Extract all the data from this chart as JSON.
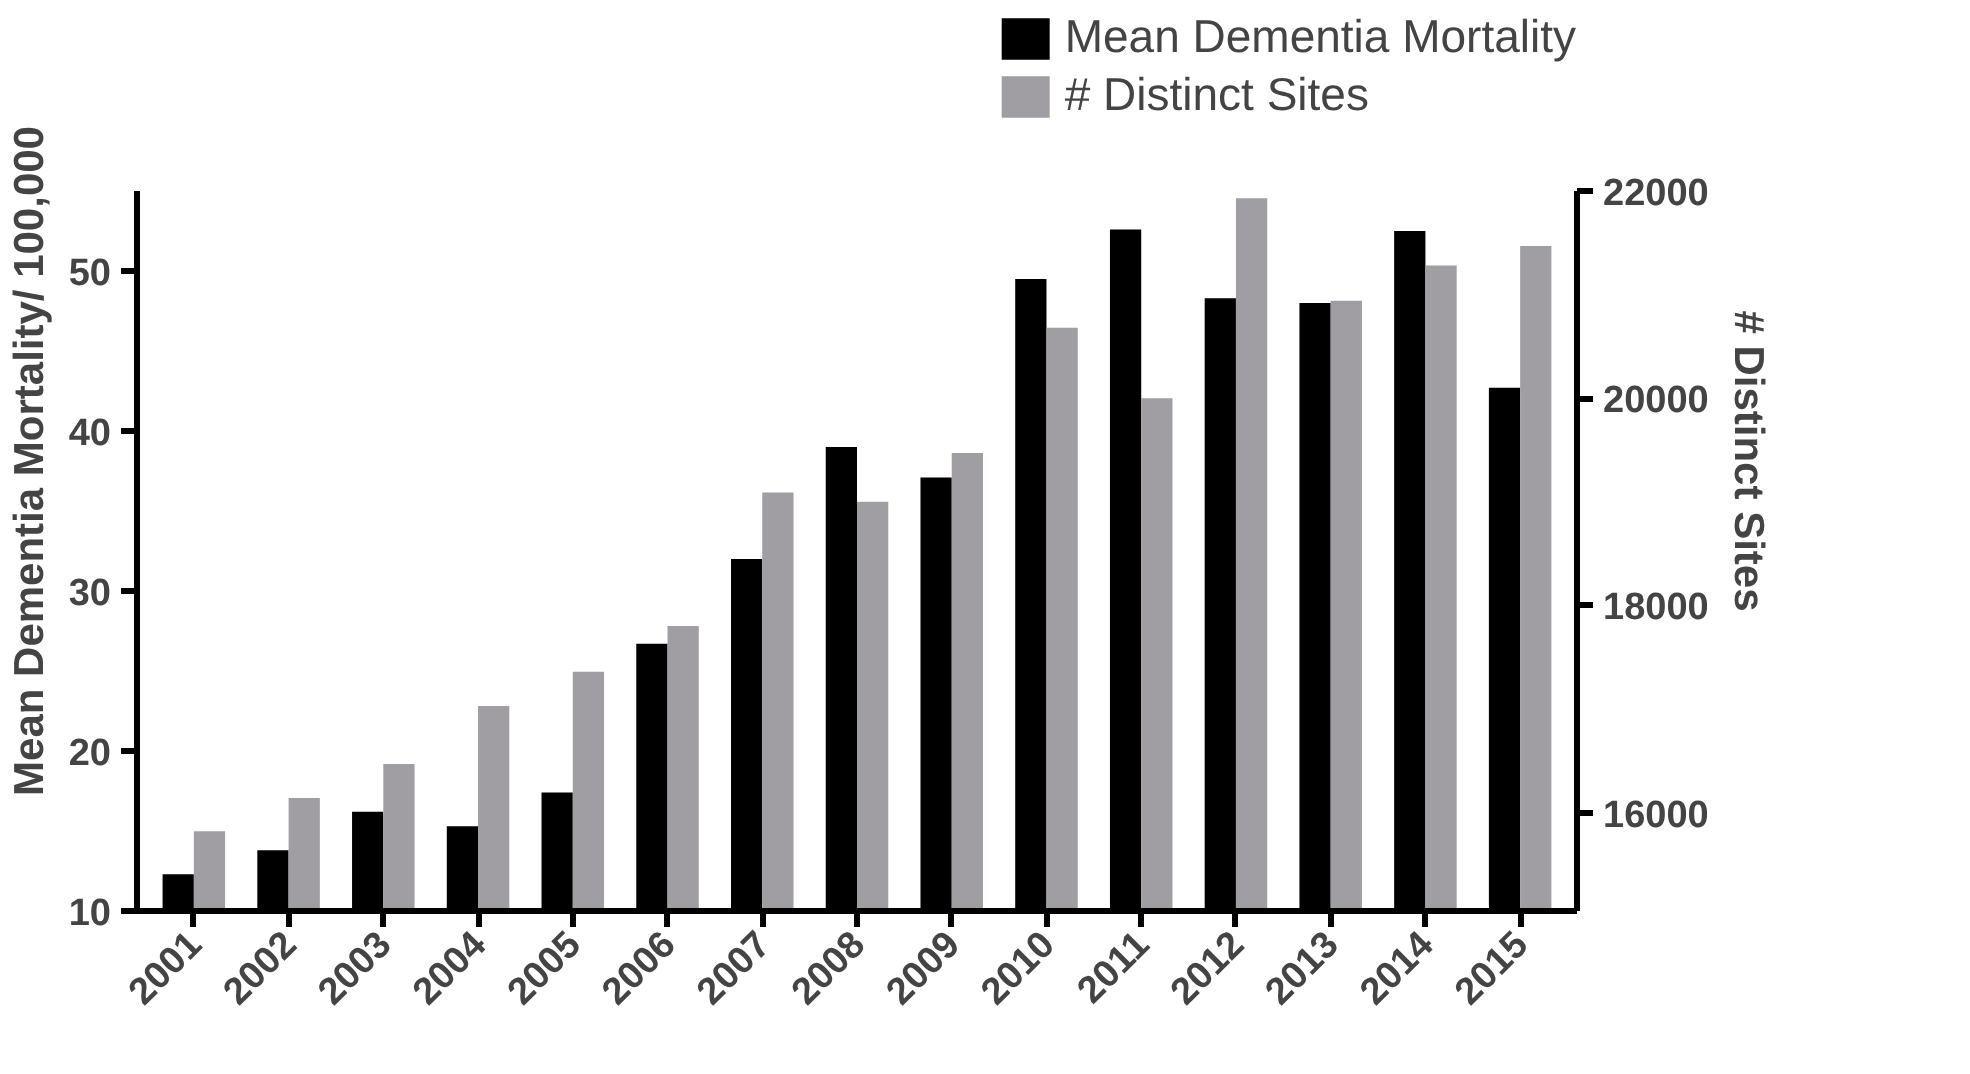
{
  "chart_data": {
    "type": "bar",
    "xlabel": null,
    "ylabel": "Mean Dementia Mortality/ 100,000",
    "y2label": "# Distinct Sites",
    "categories": [
      "2001",
      "2002",
      "2003",
      "2004",
      "2005",
      "2006",
      "2007",
      "2008",
      "2009",
      "2010",
      "2011",
      "2012",
      "2013",
      "2014",
      "2015"
    ],
    "series": [
      {
        "name": "Mean Dementia Mortality",
        "color": "#000000",
        "values": [
          12.3,
          13.8,
          16.2,
          15.3,
          17.4,
          26.7,
          32.0,
          39.0,
          37.1,
          49.5,
          52.6,
          48.3,
          48.0,
          52.5,
          42.7
        ]
      },
      {
        "name": "# Distinct Sites",
        "color": "#a09ea3",
        "axis": "y2",
        "values": [
          15820,
          16140,
          16470,
          17030,
          17360,
          17800,
          19090,
          19000,
          19470,
          20680,
          20000,
          21930,
          20940,
          21280,
          21470
        ]
      }
    ],
    "ylim": [
      10,
      55
    ],
    "yticks": [
      10,
      20,
      30,
      40,
      50
    ],
    "y2lim": [
      15050,
      22000
    ],
    "y2ticks": [
      16000,
      18000,
      20000,
      22000
    ],
    "grid": false,
    "legend": "top right"
  }
}
